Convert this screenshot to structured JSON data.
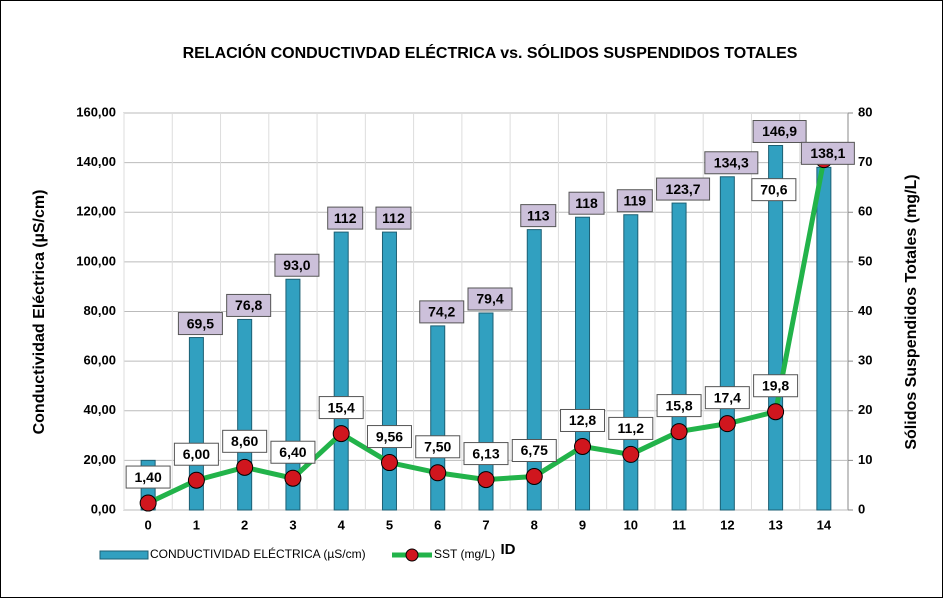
{
  "chart_data": {
    "type": "bar_line",
    "title": "RELACIÓN CONDUCTIVDAD ELÉCTRICA vs. SÓLIDOS SUSPENDIDOS TOTALES",
    "xlabel": "ID",
    "ylabel": "Conductividad Eléctrica (µS/cm)",
    "y2label": "Sólidos Suspendidos Totales (mg/L)",
    "categories": [
      "0",
      "1",
      "2",
      "3",
      "4",
      "5",
      "6",
      "7",
      "8",
      "9",
      "10",
      "11",
      "12",
      "13",
      "14"
    ],
    "series": [
      {
        "name": "CONDUCTIVIDAD ELÉCTRICA (µS/cm)",
        "type": "bar",
        "color": "#31a0c0",
        "values": [
          20,
          69.5,
          76.8,
          93.0,
          112,
          112,
          74.2,
          79.4,
          113,
          118,
          119,
          123.7,
          134.3,
          146.9,
          138.1
        ],
        "value_labels": [
          null,
          "69,5",
          "76,8",
          "93,0",
          "112",
          "112",
          "74,2",
          "79,4",
          "113",
          "118",
          "119",
          "123,7",
          "134,3",
          "146,9",
          "138,1"
        ]
      },
      {
        "name": "SST (mg/L)",
        "type": "line",
        "axis": "y2",
        "color": "#22b34a",
        "marker_color": "#d0161e",
        "values": [
          1.4,
          6.0,
          8.6,
          6.4,
          15.4,
          9.56,
          7.5,
          6.13,
          6.75,
          12.8,
          11.2,
          15.8,
          17.4,
          19.8,
          70.6
        ],
        "value_labels": [
          "1,40",
          "6,00",
          "8,60",
          "6,40",
          "15,4",
          "9,56",
          "7,50",
          "6,13",
          "6,75",
          "12,8",
          "11,2",
          "15,8",
          "17,4",
          "19,8",
          "70,6"
        ]
      }
    ],
    "ylim": [
      0,
      160
    ],
    "yticks": [
      {
        "value": 0,
        "label": "0,00"
      },
      {
        "value": 20,
        "label": "20,00"
      },
      {
        "value": 40,
        "label": "40,00"
      },
      {
        "value": 60,
        "label": "60,00"
      },
      {
        "value": 80,
        "label": "80,00"
      },
      {
        "value": 100,
        "label": "100,00"
      },
      {
        "value": 120,
        "label": "120,00"
      },
      {
        "value": 140,
        "label": "140,00"
      },
      {
        "value": 160,
        "label": "160,00"
      }
    ],
    "y2lim": [
      0,
      80
    ],
    "y2ticks": [
      0,
      10,
      20,
      30,
      40,
      50,
      60,
      70,
      80
    ],
    "grid": true
  }
}
